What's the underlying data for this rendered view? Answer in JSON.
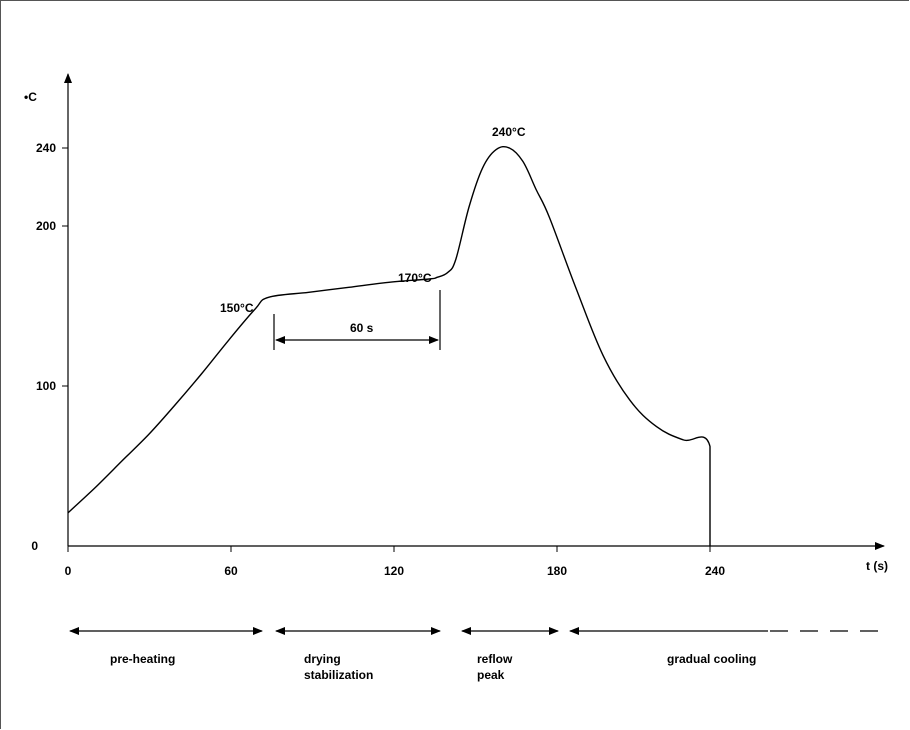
{
  "chart_data": {
    "type": "line",
    "title": "",
    "xlabel": "t (s)",
    "ylabel": "•C",
    "xlim": [
      0,
      250
    ],
    "ylim": [
      0,
      250
    ],
    "x_ticks": [
      "0",
      "60",
      "120",
      "180",
      "240"
    ],
    "y_ticks": [
      "0",
      "100",
      "200",
      "240"
    ],
    "series": [
      {
        "x": [
          0,
          10,
          20,
          30,
          40,
          50,
          60,
          70,
          75,
          90,
          105,
          120,
          135,
          138,
          142,
          145,
          150,
          155,
          160,
          165,
          170,
          175,
          180,
          190,
          200,
          210,
          220,
          230,
          240,
          240
        ],
        "y": [
          20,
          35,
          51,
          67,
          85,
          104,
          124,
          143,
          150,
          153,
          156,
          159,
          161,
          162,
          165,
          173,
          205,
          228,
          239,
          240,
          232,
          215,
          198,
          155,
          115,
          88,
          72,
          64,
          60,
          0
        ]
      }
    ],
    "annotations": {
      "t150": "150°C",
      "t170": "170°C",
      "t240": "240°C",
      "duration": "60 s"
    },
    "phases": [
      {
        "label_line1": "pre-heating",
        "label_line2": ""
      },
      {
        "label_line1": "drying",
        "label_line2": "stabilization"
      },
      {
        "label_line1": "reflow",
        "label_line2": "peak"
      },
      {
        "label_line1": "gradual cooling",
        "label_line2": ""
      }
    ]
  }
}
